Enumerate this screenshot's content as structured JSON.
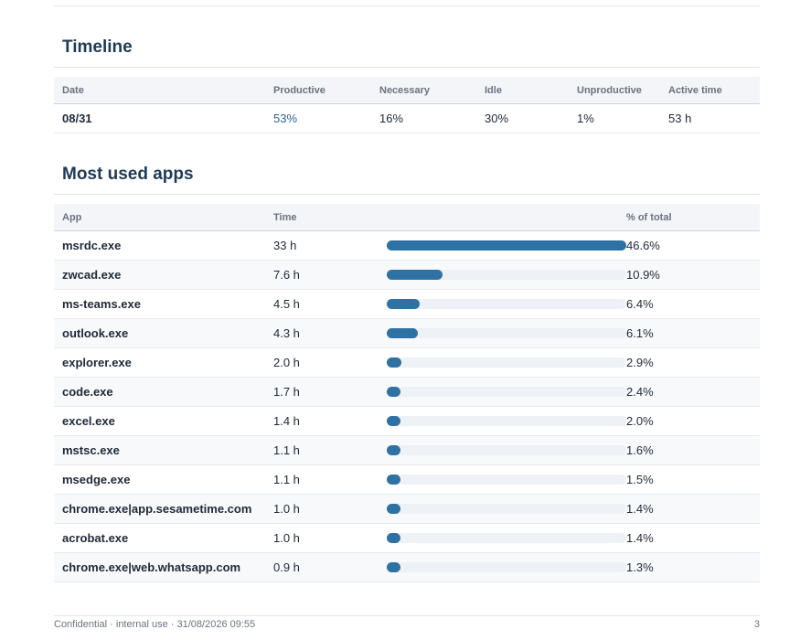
{
  "timeline": {
    "title": "Timeline",
    "headers": [
      "Date",
      "Productive",
      "Necessary",
      "Idle",
      "Unproductive",
      "Active time"
    ],
    "rows": [
      {
        "date": "08/31",
        "productive": "53%",
        "necessary": "16%",
        "idle": "30%",
        "unproductive": "1%",
        "active_time": "53 h"
      }
    ]
  },
  "apps": {
    "title": "Most used apps",
    "headers": {
      "app": "App",
      "time": "Time",
      "bar": "",
      "pct": "% of total"
    },
    "rows": [
      {
        "app": "msrdc.exe",
        "time": "33 h",
        "pct": "46.6%",
        "share": 46.6
      },
      {
        "app": "zwcad.exe",
        "time": "7.6 h",
        "pct": "10.9%",
        "share": 10.9
      },
      {
        "app": "ms-teams.exe",
        "time": "4.5 h",
        "pct": "6.4%",
        "share": 6.4
      },
      {
        "app": "outlook.exe",
        "time": "4.3 h",
        "pct": "6.1%",
        "share": 6.1
      },
      {
        "app": "explorer.exe",
        "time": "2.0 h",
        "pct": "2.9%",
        "share": 2.9
      },
      {
        "app": "code.exe",
        "time": "1.7 h",
        "pct": "2.4%",
        "share": 2.4
      },
      {
        "app": "excel.exe",
        "time": "1.4 h",
        "pct": "2.0%",
        "share": 2.0
      },
      {
        "app": "mstsc.exe",
        "time": "1.1 h",
        "pct": "1.6%",
        "share": 1.6
      },
      {
        "app": "msedge.exe",
        "time": "1.1 h",
        "pct": "1.5%",
        "share": 1.5
      },
      {
        "app": "chrome.exe|app.sesametime.com",
        "time": "1.0 h",
        "pct": "1.4%",
        "share": 1.4
      },
      {
        "app": "acrobat.exe",
        "time": "1.0 h",
        "pct": "1.4%",
        "share": 1.4
      },
      {
        "app": "chrome.exe|web.whatsapp.com",
        "time": "0.9 h",
        "pct": "1.3%",
        "share": 1.3
      }
    ]
  },
  "colors": {
    "bar": "#2e72a4",
    "heading": "#1f3a56",
    "productive": "#2a6496"
  },
  "footer": {
    "left": "Confidential · internal use · 31/08/2026 09:55",
    "page_number": "3"
  }
}
